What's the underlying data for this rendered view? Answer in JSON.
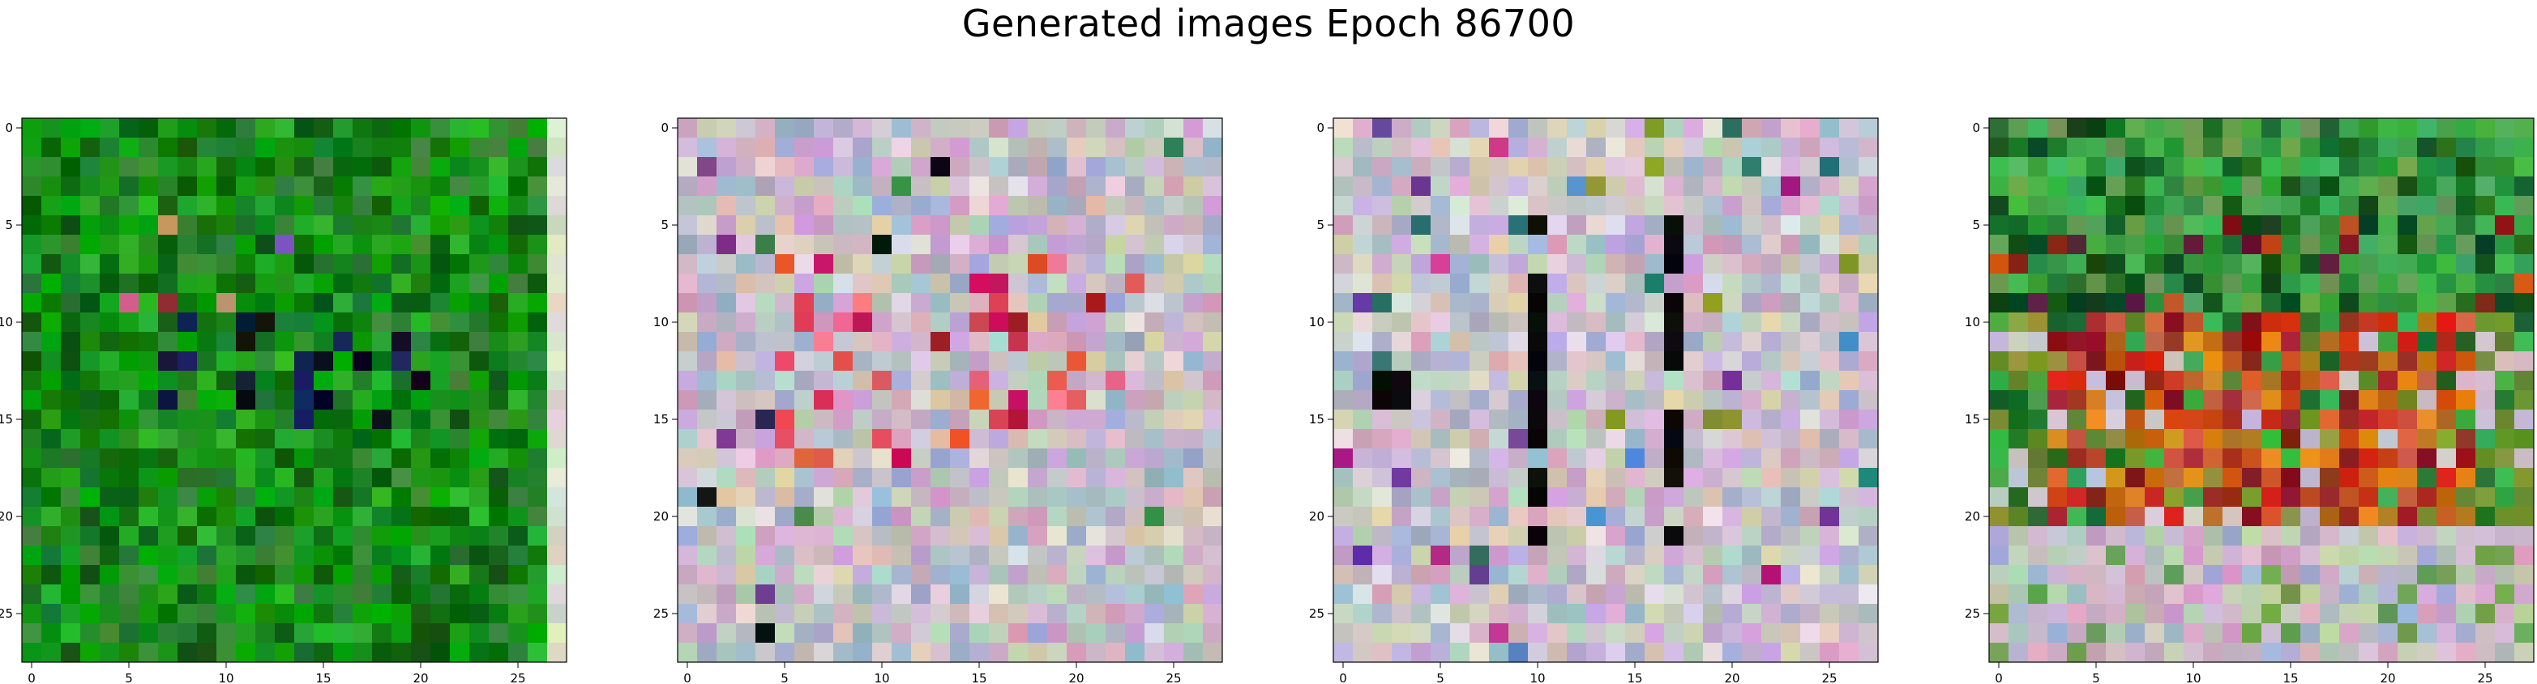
{
  "title": "Generated images Epoch 86700",
  "chart_data": [
    {
      "type": "heatmap",
      "name": "Generated image 1 (predominantly green)",
      "grid_size": [
        28,
        28
      ],
      "xticks": [
        "0",
        "5",
        "10",
        "15",
        "20",
        "25"
      ],
      "yticks": [
        "0",
        "5",
        "10",
        "15",
        "20",
        "25"
      ],
      "palette": [
        "#0a6e0a",
        "#128a12",
        "#1f9a1f",
        "#0f5a0f",
        "#2bb32b",
        "#06a406",
        "#1e7a2e",
        "#3a8a3a",
        "#0b3b0b",
        "#0d1a3a"
      ],
      "features": [
        "right edge column pale grey-white",
        "dark/navy patches rows 11-14",
        "scattered magenta/tan accents center"
      ]
    },
    {
      "type": "heatmap",
      "name": "Generated image 2 (pastel mosaic)",
      "grid_size": [
        28,
        28
      ],
      "xticks": [
        "0",
        "5",
        "10",
        "15",
        "20",
        "25"
      ],
      "yticks": [
        "0",
        "5",
        "10",
        "15",
        "20",
        "25"
      ],
      "palette": [
        "#c9c3cc",
        "#d7b7cf",
        "#b9c7b5",
        "#a7b2cf",
        "#e0d6dc",
        "#cfa4bf",
        "#9fb0c4",
        "#d6c8b0",
        "#c7a9d6",
        "#b6d0c6"
      ],
      "features": [
        "red/pink accents rows 7-17",
        "dark navy accents"
      ]
    },
    {
      "type": "heatmap",
      "name": "Generated image 3 (pastel with dark vertical bands)",
      "grid_size": [
        28,
        28
      ],
      "xticks": [
        "0",
        "5",
        "10",
        "15",
        "20",
        "25"
      ],
      "yticks": [
        "0",
        "5",
        "10",
        "15",
        "20",
        "25"
      ],
      "palette": [
        "#cdc7cf",
        "#d8bcd3",
        "#bfcab8",
        "#adb6cf",
        "#e3dbe0",
        "#cfa7c0",
        "#a3b3c6",
        "#d9ccb6",
        "#c9addb",
        "#bad3c9"
      ],
      "features": [
        "black vertical band column 10",
        "black vertical band column 17",
        "black patch at column 2-3 rows 13-14"
      ]
    },
    {
      "type": "heatmap",
      "name": "Generated image 4 (green top, red/orange center, pastel bottom)",
      "grid_size": [
        28,
        28
      ],
      "xticks": [
        "0",
        "5",
        "10",
        "15",
        "20",
        "25"
      ],
      "yticks": [
        "0",
        "5",
        "10",
        "15",
        "20",
        "25"
      ],
      "palette": [
        "#2f9a3a",
        "#3fae4b",
        "#1e6e2a",
        "#6a8a2a",
        "#c8501a",
        "#d42a1a",
        "#e08a1a",
        "#8a1a1a",
        "#c9c3cc",
        "#b9c7b5"
      ],
      "features": [
        "green upper region rows 0-9",
        "red/orange center rows 10-20",
        "pastel lower region rows 21-27"
      ]
    }
  ]
}
